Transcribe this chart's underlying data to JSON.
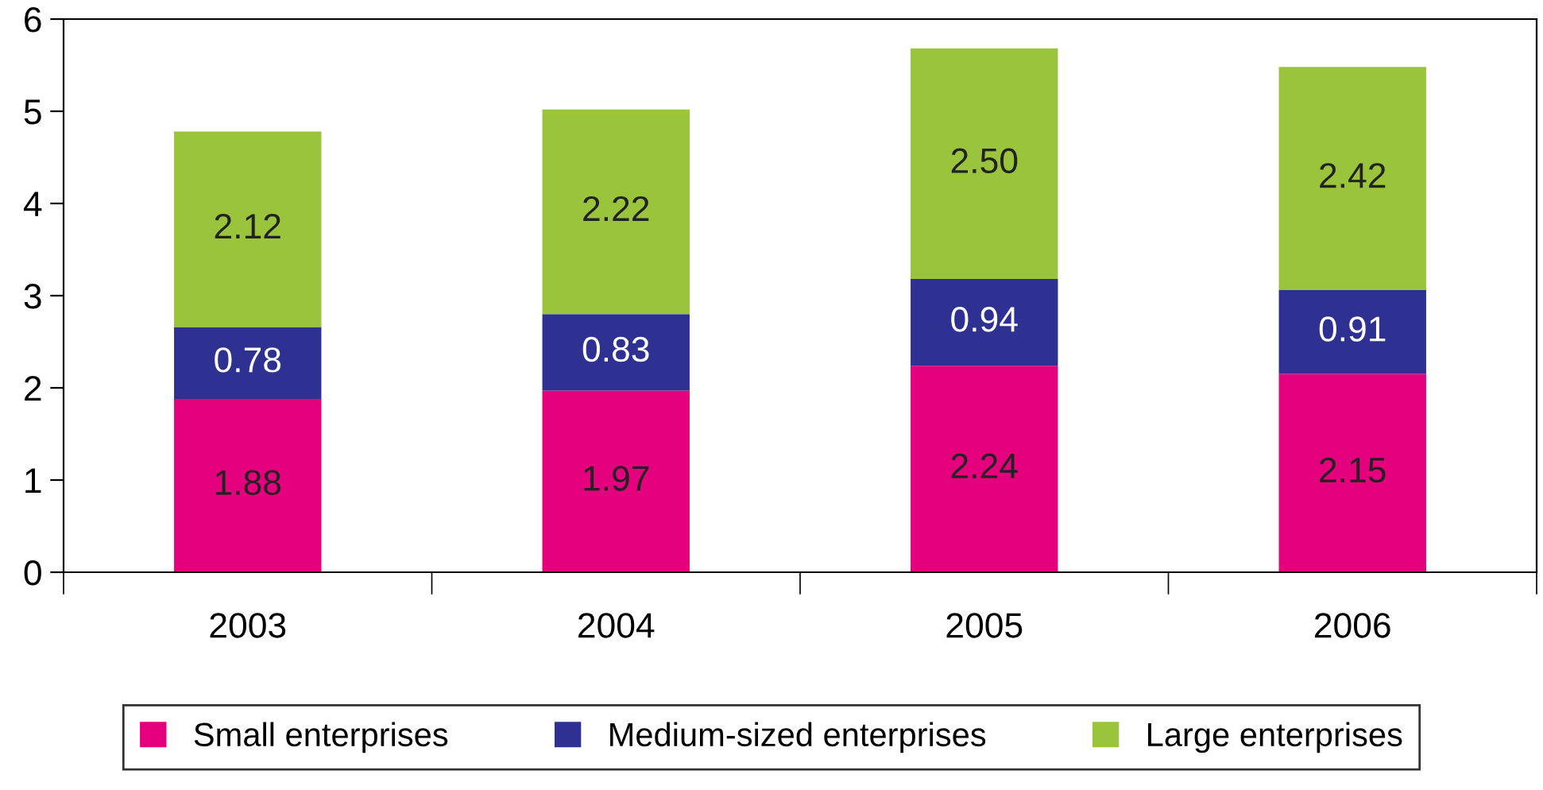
{
  "chart_data": {
    "type": "bar",
    "stacked": true,
    "categories": [
      "2003",
      "2004",
      "2005",
      "2006"
    ],
    "series": [
      {
        "name": "Small enterprises",
        "color": "#e5007d",
        "values": [
          1.88,
          1.97,
          2.24,
          2.15
        ],
        "value_labels": [
          "1.88",
          "1.97",
          "2.24",
          "2.15"
        ]
      },
      {
        "name": "Medium-sized enterprises",
        "color": "#2e3192",
        "values": [
          0.78,
          0.83,
          0.94,
          0.91
        ],
        "value_labels": [
          "0.78",
          "0.83",
          "0.94",
          "0.91"
        ]
      },
      {
        "name": "Large enterprises",
        "color": "#9ac43c",
        "values": [
          2.12,
          2.22,
          2.5,
          2.42
        ],
        "value_labels": [
          "2.12",
          "2.22",
          "2.50",
          "2.42"
        ]
      }
    ],
    "ylim": [
      0,
      6
    ],
    "yticks": [
      0,
      1,
      2,
      3,
      4,
      5,
      6
    ],
    "grid": false,
    "legend": "bottom"
  }
}
